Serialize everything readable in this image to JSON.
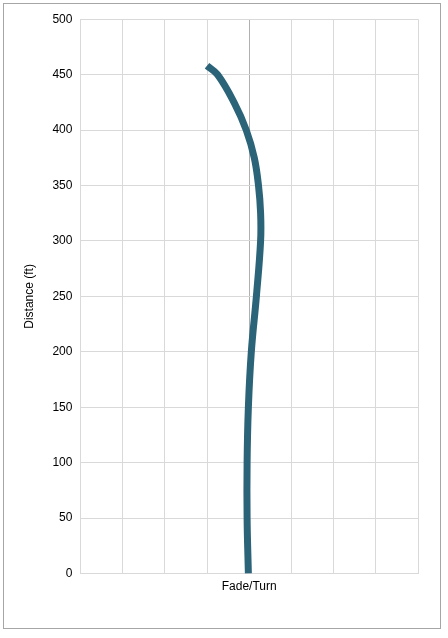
{
  "chart_data": {
    "type": "line",
    "x_label": "Fade/Turn",
    "y_label": "Distance (ft)",
    "x": [
      -0.02,
      -0.05,
      -0.05,
      -0.02,
      0.05,
      0.17,
      0.27,
      0.27,
      0.22,
      0.12,
      -0.07,
      -0.36,
      -0.75,
      -1.0
    ],
    "values": [
      0,
      50,
      100,
      150,
      200,
      250,
      300,
      325,
      350,
      375,
      400,
      425,
      450,
      458
    ],
    "color": "#2b6378",
    "xlim": [
      -4,
      4
    ],
    "xticks": [
      -4,
      -3,
      -2,
      -1,
      0,
      1,
      2,
      3,
      4
    ],
    "ylim": [
      0,
      500
    ],
    "yticks": [
      0,
      50,
      100,
      150,
      200,
      250,
      300,
      350,
      400,
      450,
      500
    ],
    "tick_labels": "y",
    "grid": true
  }
}
